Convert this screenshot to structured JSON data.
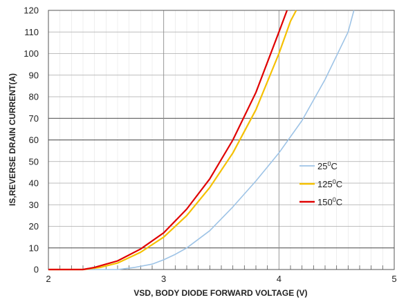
{
  "chart_data": {
    "type": "line",
    "xlabel": "VSD, BODY DIODE FORWARD VOLTAGE (V)",
    "ylabel": "IS,REVERSE DRAIN CURRENT(A)",
    "xlim": [
      2,
      5
    ],
    "ylim": [
      0,
      120
    ],
    "xticks": [
      "2",
      "3",
      "4",
      "5"
    ],
    "yticks": [
      "0",
      "10",
      "20",
      "30",
      "40",
      "50",
      "60",
      "70",
      "80",
      "90",
      "100",
      "110",
      "120"
    ],
    "grid": true,
    "legend_position": "right-center",
    "series": [
      {
        "name": "25",
        "unit": "C",
        "label_prefix": "25",
        "color": "#9dc3e6",
        "x": [
          2.0,
          2.6,
          2.75,
          2.9,
          3.0,
          3.1,
          3.2,
          3.4,
          3.6,
          3.8,
          4.0,
          4.2,
          4.4,
          4.6,
          4.65
        ],
        "y": [
          0,
          0,
          1,
          2.5,
          4.5,
          7,
          10,
          18,
          29,
          41,
          54,
          69,
          88,
          110,
          120
        ]
      },
      {
        "name": "125",
        "unit": "C",
        "label_prefix": "125",
        "color": "#f5c000",
        "x": [
          2.0,
          2.3,
          2.45,
          2.6,
          2.8,
          3.0,
          3.2,
          3.4,
          3.6,
          3.8,
          4.0,
          4.1,
          4.15
        ],
        "y": [
          0,
          0,
          1,
          3,
          8,
          15,
          25,
          38,
          54,
          74,
          100,
          115,
          120
        ]
      },
      {
        "name": "150",
        "unit": "C",
        "label_prefix": "150",
        "color": "#e00000",
        "x": [
          2.0,
          2.3,
          2.4,
          2.6,
          2.8,
          3.0,
          3.2,
          3.4,
          3.6,
          3.8,
          4.0,
          4.07
        ],
        "y": [
          0,
          0,
          1,
          4,
          9.5,
          17,
          28,
          42,
          60,
          82,
          110,
          120
        ]
      }
    ],
    "highlight_gridlines_y": [
      10,
      60,
      70
    ]
  }
}
